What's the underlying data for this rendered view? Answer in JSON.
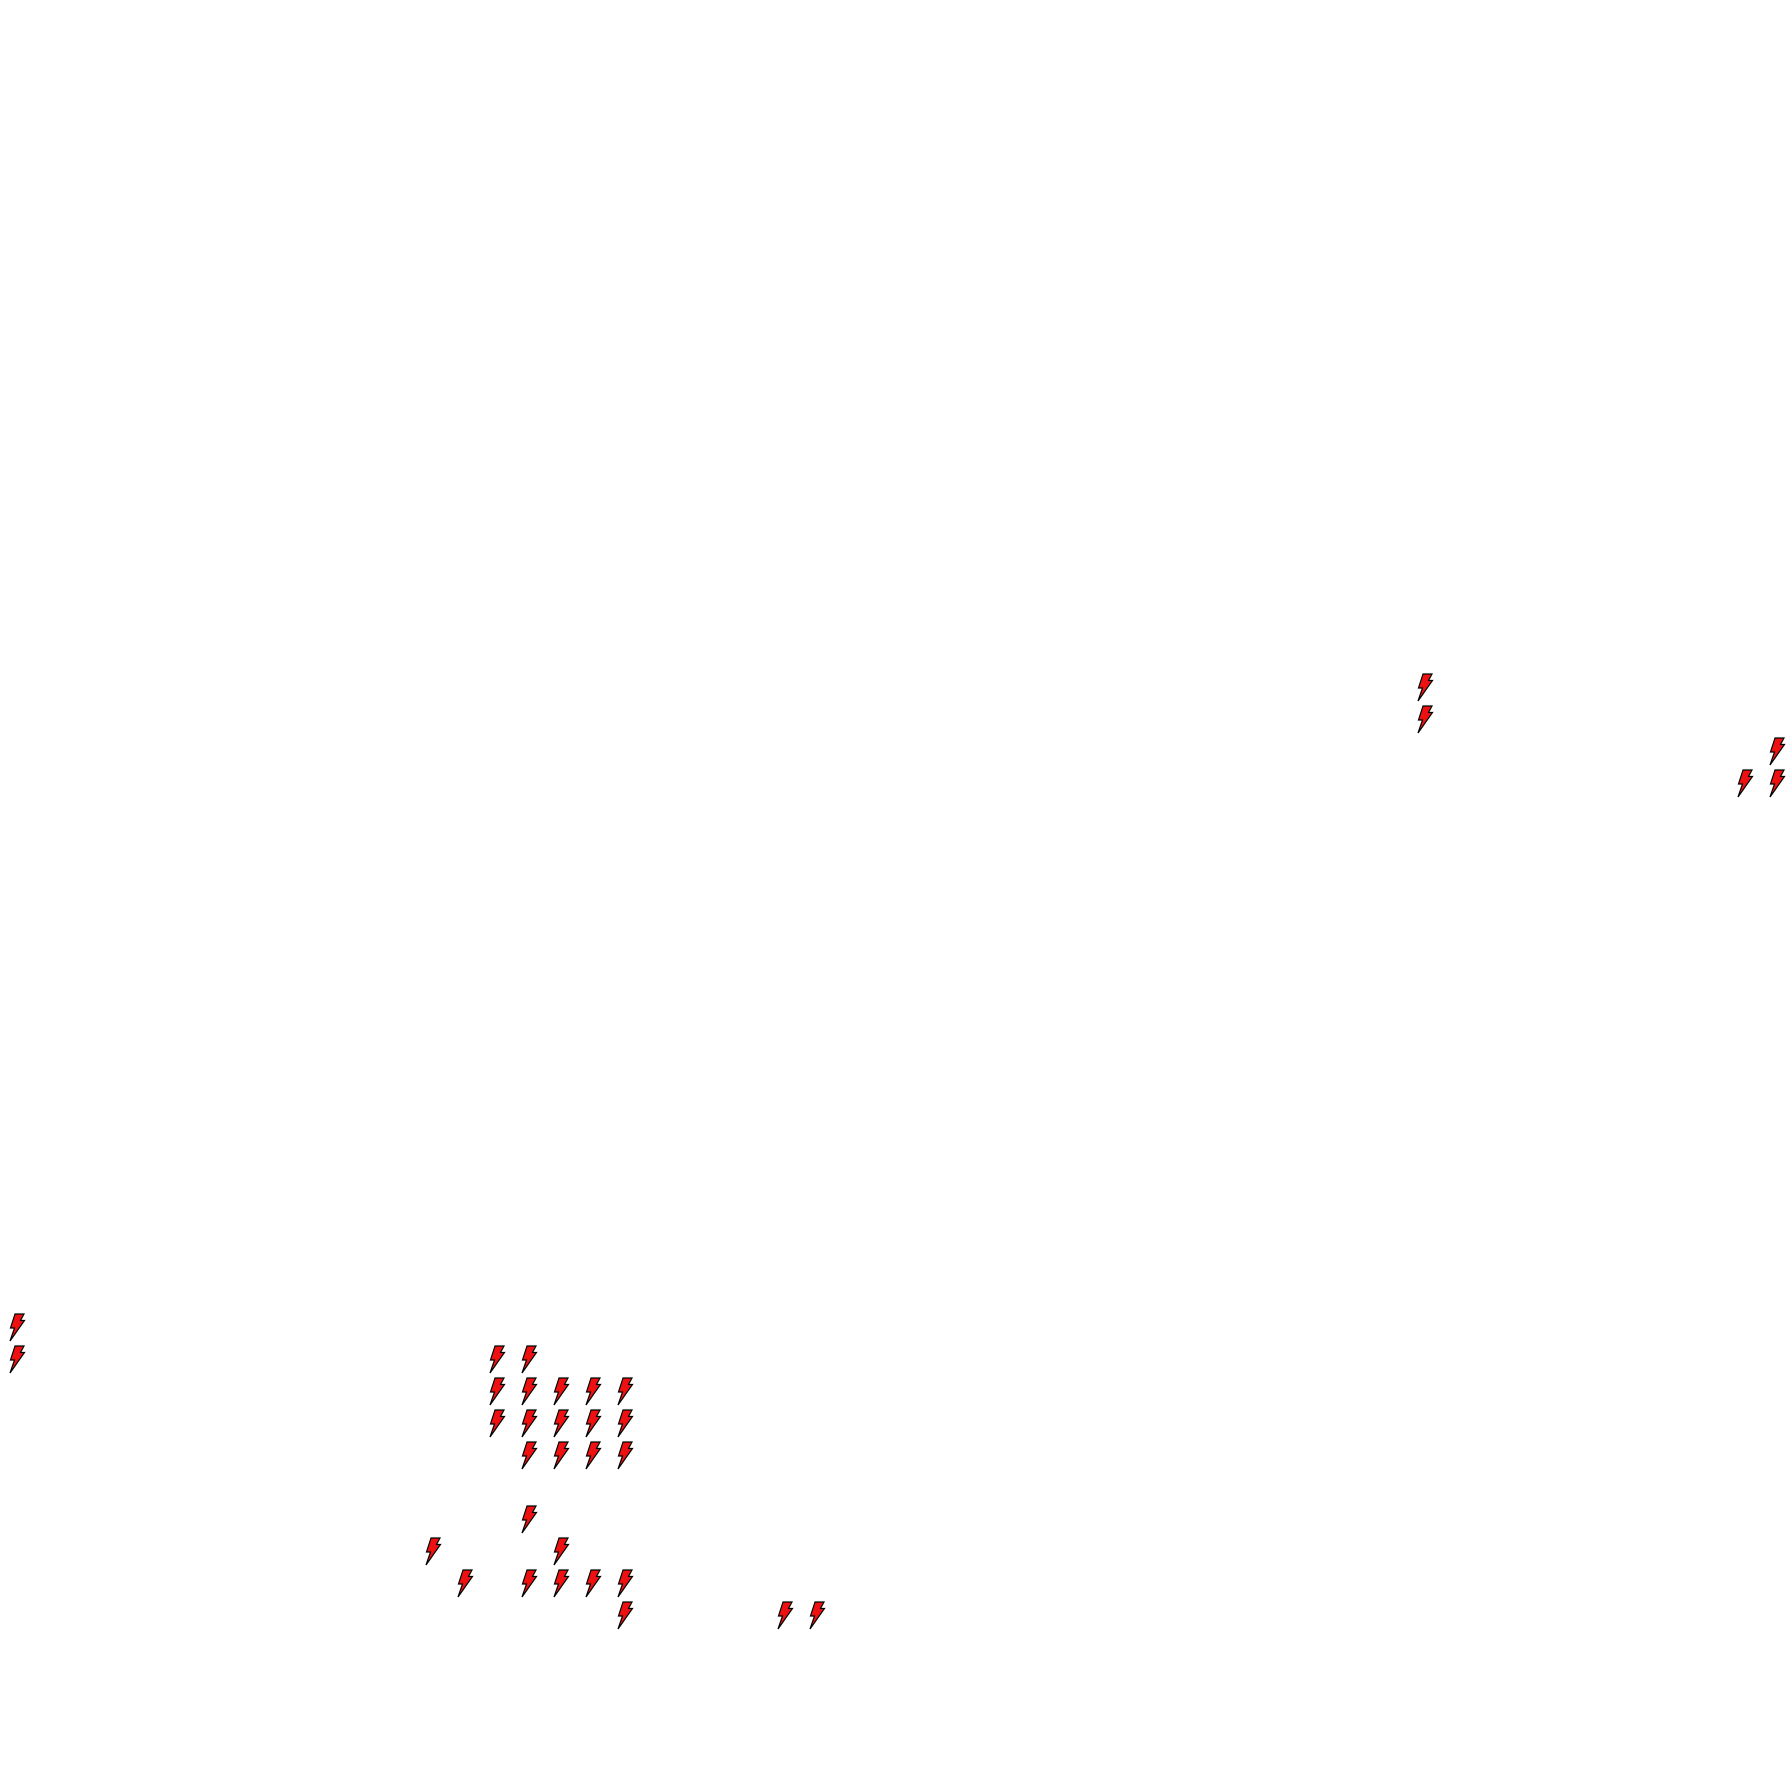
{
  "map": {
    "background": "#ffffff",
    "marker_icon": "lightning-bolt-icon",
    "marker_fill": "#ee1111",
    "marker_stroke": "#000000"
  }
}
